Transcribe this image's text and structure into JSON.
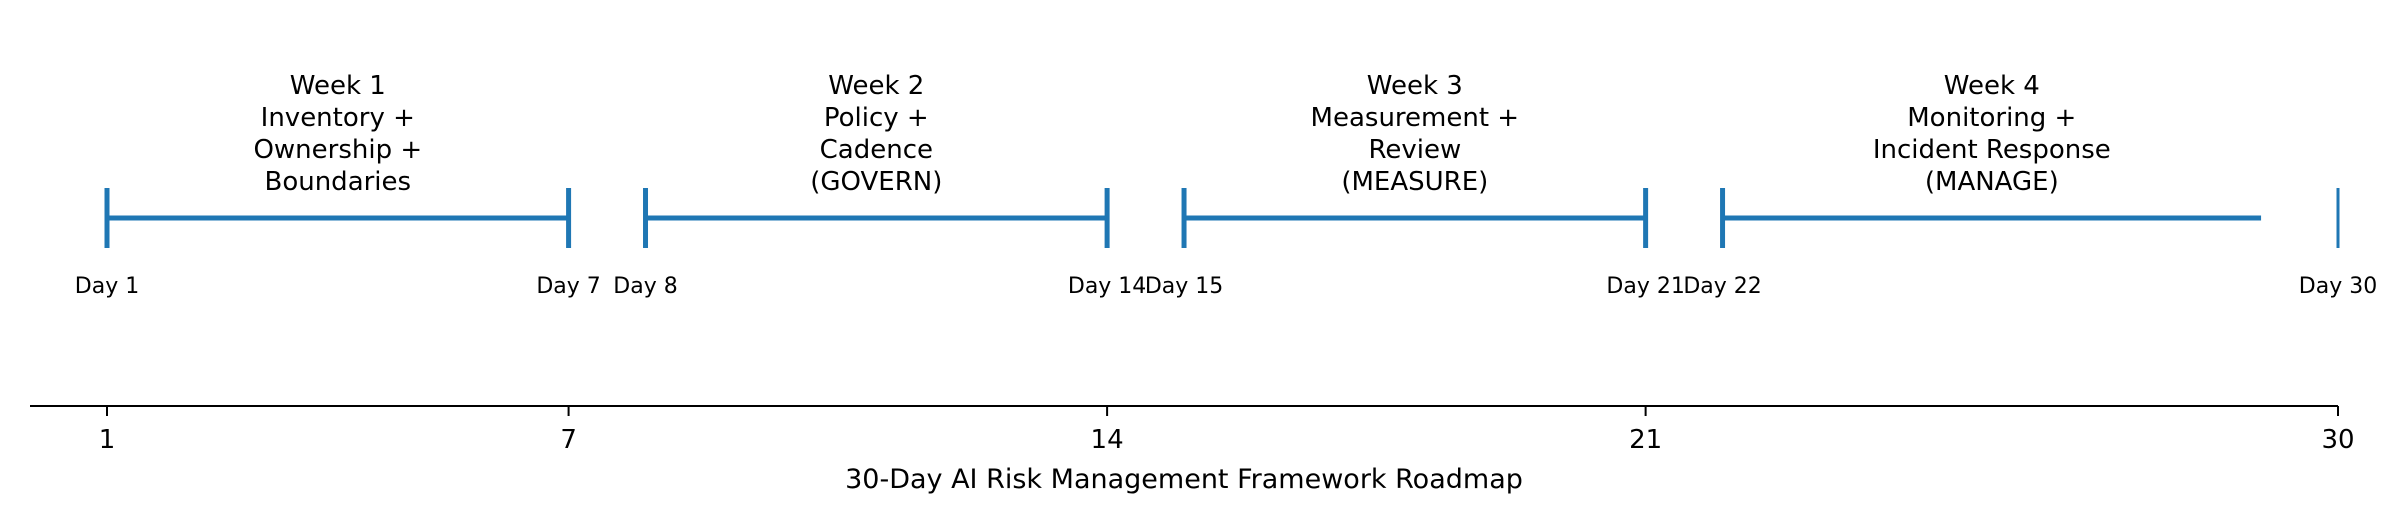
{
  "chart_data": {
    "type": "timeline",
    "xlabel": "30-Day AI Risk Management Framework Roadmap",
    "xlim": [
      0,
      30
    ],
    "xticks": [
      1,
      7,
      14,
      21,
      30
    ],
    "color": "#1f77b4",
    "grid": false,
    "phases": [
      {
        "start": 1,
        "end": 7,
        "start_label": "Day 1",
        "end_label": "Day 7",
        "title": [
          "Week 1",
          "Inventory +",
          "Ownership +",
          "Boundaries"
        ]
      },
      {
        "start": 8,
        "end": 14,
        "start_label": "Day 8",
        "end_label": "Day 14",
        "title": [
          "Week 2",
          "Policy +",
          "Cadence",
          "(GOVERN)"
        ]
      },
      {
        "start": 15,
        "end": 21,
        "start_label": "Day 15",
        "end_label": "Day 21",
        "title": [
          "Week 3",
          "Measurement +",
          "Review",
          "(MEASURE)"
        ]
      },
      {
        "start": 22,
        "end": 29,
        "start_label": "Day 22",
        "end_label": "",
        "title": [
          "Week 4",
          "Monitoring +",
          "Incident Response",
          "(MANAGE)"
        ]
      }
    ],
    "final_marker": {
      "day": 30,
      "label": "Day 30"
    }
  }
}
